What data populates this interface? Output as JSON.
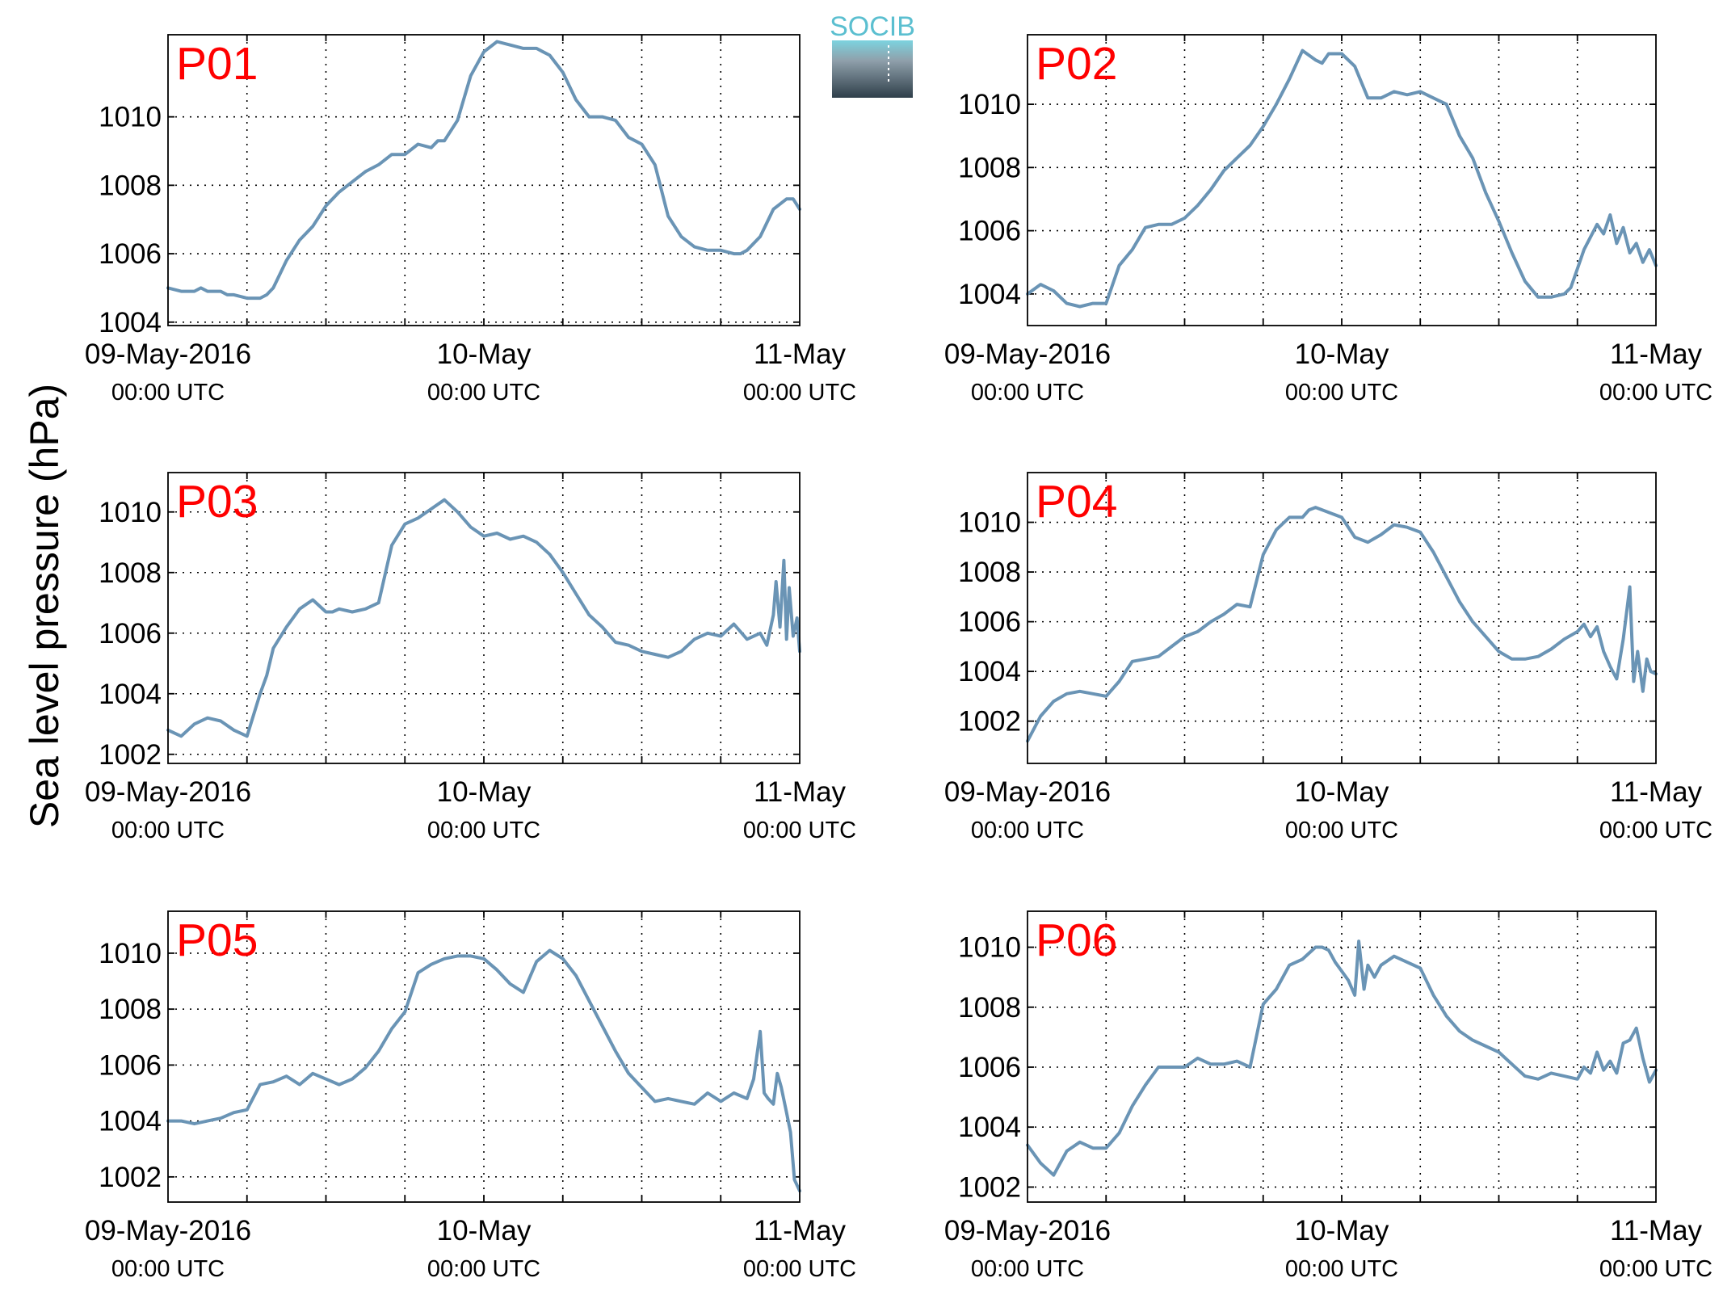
{
  "logo": {
    "text": "SOCIB"
  },
  "ylabel": "Sea level pressure (hPa)",
  "colors": {
    "series": "#6a94b5",
    "panel_label": "#ff0000"
  },
  "x_ticks": [
    {
      "line1": "09-May-2016",
      "line2": "00:00 UTC"
    },
    {
      "line1": "10-May",
      "line2": "00:00 UTC"
    },
    {
      "line1": "11-May",
      "line2": "00:00 UTC"
    }
  ],
  "chart_data": [
    {
      "type": "line",
      "label": "P01",
      "xlim": [
        0,
        48
      ],
      "ylim": [
        1003.9,
        1012.4
      ],
      "yticks": [
        1004,
        1006,
        1008,
        1010
      ],
      "grid": true,
      "x": [
        0,
        1,
        2,
        2.5,
        3,
        4,
        4.5,
        5,
        6,
        7,
        7.5,
        8,
        9,
        10,
        11,
        11.5,
        12,
        13,
        14,
        15,
        16,
        17,
        17.5,
        18,
        19,
        20,
        20.5,
        21,
        22,
        23,
        24,
        25,
        26,
        27,
        28,
        28.5,
        29,
        30,
        31,
        32,
        33,
        34,
        35,
        35.5,
        36,
        37,
        38,
        39,
        40,
        41,
        42,
        43,
        43.5,
        44,
        45,
        45.5,
        46,
        47,
        47.5,
        48
      ],
      "y": [
        1005.0,
        1004.9,
        1004.9,
        1005.0,
        1004.9,
        1004.9,
        1004.8,
        1004.8,
        1004.7,
        1004.7,
        1004.8,
        1005.0,
        1005.8,
        1006.4,
        1006.8,
        1007.1,
        1007.4,
        1007.8,
        1008.1,
        1008.4,
        1008.6,
        1008.9,
        1008.9,
        1008.9,
        1009.2,
        1009.1,
        1009.3,
        1009.3,
        1009.9,
        1011.2,
        1011.9,
        1012.2,
        1012.1,
        1012.0,
        1012.0,
        1011.9,
        1011.8,
        1011.3,
        1010.5,
        1010.0,
        1010.0,
        1009.9,
        1009.4,
        1009.3,
        1009.2,
        1008.6,
        1007.1,
        1006.5,
        1006.2,
        1006.1,
        1006.1,
        1006.0,
        1006.0,
        1006.1,
        1006.5,
        1006.9,
        1007.3,
        1007.6,
        1007.6,
        1007.3
      ]
    },
    {
      "type": "line",
      "label": "P02",
      "xlim": [
        0,
        48
      ],
      "ylim": [
        1003.0,
        1012.2
      ],
      "yticks": [
        1004,
        1006,
        1008,
        1010
      ],
      "grid": true,
      "x": [
        0,
        1,
        2,
        3,
        4,
        5,
        6,
        7,
        8,
        9,
        10,
        11,
        12,
        13,
        14,
        15,
        16,
        17,
        18,
        19,
        20,
        21,
        22,
        22.5,
        23,
        24,
        25,
        26,
        27,
        28,
        29,
        30,
        31,
        32,
        33,
        34,
        35,
        36,
        37,
        38,
        39,
        40,
        41,
        41.5,
        42,
        42.5,
        43,
        43.5,
        44,
        44.5,
        45,
        45.5,
        46,
        46.5,
        47,
        47.5,
        48
      ],
      "y": [
        1004.0,
        1004.3,
        1004.1,
        1003.7,
        1003.6,
        1003.7,
        1003.7,
        1004.9,
        1005.4,
        1006.1,
        1006.2,
        1006.2,
        1006.4,
        1006.8,
        1007.3,
        1007.9,
        1008.3,
        1008.7,
        1009.3,
        1010.0,
        1010.8,
        1011.7,
        1011.4,
        1011.3,
        1011.6,
        1011.6,
        1011.2,
        1010.2,
        1010.2,
        1010.4,
        1010.3,
        1010.4,
        1010.2,
        1010.0,
        1009.0,
        1008.3,
        1007.2,
        1006.3,
        1005.3,
        1004.4,
        1003.9,
        1003.9,
        1004.0,
        1004.2,
        1004.8,
        1005.4,
        1005.8,
        1006.2,
        1005.9,
        1006.5,
        1005.6,
        1006.1,
        1005.3,
        1005.6,
        1005.0,
        1005.4,
        1004.9
      ]
    },
    {
      "type": "line",
      "label": "P03",
      "xlim": [
        0,
        48
      ],
      "ylim": [
        1001.7,
        1011.3
      ],
      "yticks": [
        1002,
        1004,
        1006,
        1008,
        1010
      ],
      "grid": true,
      "x": [
        0,
        1,
        2,
        3,
        4,
        5,
        6,
        7,
        7.5,
        8,
        9,
        10,
        11,
        12,
        12.5,
        13,
        14,
        15,
        16,
        17,
        18,
        19,
        20,
        21,
        22,
        23,
        24,
        25,
        26,
        27,
        28,
        29,
        30,
        31,
        32,
        33,
        34,
        35,
        36,
        37,
        38,
        39,
        40,
        41,
        42,
        43,
        44,
        45,
        45.5,
        46,
        46.2,
        46.5,
        46.8,
        47,
        47.2,
        47.5,
        47.8,
        48
      ],
      "y": [
        1002.8,
        1002.6,
        1003.0,
        1003.2,
        1003.1,
        1002.8,
        1002.6,
        1004.0,
        1004.6,
        1005.5,
        1006.2,
        1006.8,
        1007.1,
        1006.7,
        1006.7,
        1006.8,
        1006.7,
        1006.8,
        1007.0,
        1008.9,
        1009.6,
        1009.8,
        1010.1,
        1010.4,
        1010.0,
        1009.5,
        1009.2,
        1009.3,
        1009.1,
        1009.2,
        1009.0,
        1008.6,
        1008.0,
        1007.3,
        1006.6,
        1006.2,
        1005.7,
        1005.6,
        1005.4,
        1005.3,
        1005.2,
        1005.4,
        1005.8,
        1006.0,
        1005.9,
        1006.3,
        1005.8,
        1006.0,
        1005.6,
        1006.6,
        1007.7,
        1006.2,
        1008.4,
        1005.8,
        1007.5,
        1005.9,
        1006.5,
        1005.4
      ]
    },
    {
      "type": "line",
      "label": "P04",
      "xlim": [
        0,
        48
      ],
      "ylim": [
        1000.3,
        1012.0
      ],
      "yticks": [
        1002,
        1004,
        1006,
        1008,
        1010
      ],
      "grid": true,
      "x": [
        0,
        1,
        2,
        3,
        4,
        5,
        6,
        7,
        8,
        9,
        10,
        11,
        12,
        13,
        14,
        15,
        16,
        17,
        18,
        19,
        20,
        21,
        21.5,
        22,
        23,
        24,
        25,
        26,
        27,
        28,
        29,
        30,
        31,
        32,
        33,
        34,
        35,
        36,
        37,
        38,
        39,
        40,
        41,
        42,
        42.5,
        43,
        43.5,
        44,
        44.5,
        45,
        45.5,
        46,
        46.3,
        46.6,
        47,
        47.3,
        47.6,
        48
      ],
      "y": [
        1001.2,
        1002.2,
        1002.8,
        1003.1,
        1003.2,
        1003.1,
        1003.0,
        1003.6,
        1004.4,
        1004.5,
        1004.6,
        1005.0,
        1005.4,
        1005.6,
        1006.0,
        1006.3,
        1006.7,
        1006.6,
        1008.7,
        1009.7,
        1010.2,
        1010.2,
        1010.5,
        1010.6,
        1010.4,
        1010.2,
        1009.4,
        1009.2,
        1009.5,
        1009.9,
        1009.8,
        1009.6,
        1008.8,
        1007.8,
        1006.8,
        1006.0,
        1005.4,
        1004.8,
        1004.5,
        1004.5,
        1004.6,
        1004.9,
        1005.3,
        1005.6,
        1005.9,
        1005.4,
        1005.8,
        1004.8,
        1004.2,
        1003.7,
        1005.3,
        1007.4,
        1003.6,
        1004.8,
        1003.2,
        1004.5,
        1004.0,
        1003.9
      ]
    },
    {
      "type": "line",
      "label": "P05",
      "xlim": [
        0,
        48
      ],
      "ylim": [
        1001.1,
        1011.5
      ],
      "yticks": [
        1002,
        1004,
        1006,
        1008,
        1010
      ],
      "grid": true,
      "x": [
        0,
        1,
        2,
        3,
        4,
        5,
        6,
        7,
        8,
        9,
        10,
        11,
        12,
        13,
        14,
        15,
        16,
        17,
        18,
        19,
        20,
        21,
        22,
        23,
        24,
        25,
        26,
        27,
        28,
        29,
        30,
        31,
        32,
        33,
        34,
        35,
        36,
        37,
        38,
        39,
        40,
        41,
        42,
        43,
        44,
        44.5,
        45,
        45.3,
        45.6,
        46,
        46.3,
        46.6,
        47,
        47.3,
        47.6,
        48
      ],
      "y": [
        1004.0,
        1004.0,
        1003.9,
        1004.0,
        1004.1,
        1004.3,
        1004.4,
        1005.3,
        1005.4,
        1005.6,
        1005.3,
        1005.7,
        1005.5,
        1005.3,
        1005.5,
        1005.9,
        1006.5,
        1007.3,
        1007.9,
        1009.3,
        1009.6,
        1009.8,
        1009.9,
        1009.9,
        1009.8,
        1009.4,
        1008.9,
        1008.6,
        1009.7,
        1010.1,
        1009.8,
        1009.2,
        1008.3,
        1007.4,
        1006.5,
        1005.7,
        1005.2,
        1004.7,
        1004.8,
        1004.7,
        1004.6,
        1005.0,
        1004.7,
        1005.0,
        1004.8,
        1005.5,
        1007.2,
        1005.0,
        1004.8,
        1004.6,
        1005.7,
        1005.2,
        1004.3,
        1003.6,
        1001.9,
        1001.5
      ]
    },
    {
      "type": "line",
      "label": "P06",
      "xlim": [
        0,
        48
      ],
      "ylim": [
        1001.5,
        1011.2
      ],
      "yticks": [
        1002,
        1004,
        1006,
        1008,
        1010
      ],
      "grid": true,
      "x": [
        0,
        1,
        2,
        3,
        4,
        5,
        6,
        7,
        8,
        9,
        10,
        11,
        12,
        13,
        14,
        15,
        16,
        17,
        18,
        19,
        20,
        21,
        22,
        22.5,
        23,
        23.5,
        24,
        24.5,
        25,
        25.3,
        25.7,
        26,
        26.5,
        27,
        28,
        29,
        30,
        31,
        32,
        33,
        34,
        35,
        36,
        37,
        38,
        39,
        40,
        41,
        42,
        42.5,
        43,
        43.5,
        44,
        44.5,
        45,
        45.5,
        46,
        46.5,
        47,
        47.5,
        48
      ],
      "y": [
        1003.4,
        1002.8,
        1002.4,
        1003.2,
        1003.5,
        1003.3,
        1003.3,
        1003.8,
        1004.7,
        1005.4,
        1006.0,
        1006.0,
        1006.0,
        1006.3,
        1006.1,
        1006.1,
        1006.2,
        1006.0,
        1008.1,
        1008.6,
        1009.4,
        1009.6,
        1010.0,
        1010.0,
        1009.9,
        1009.5,
        1009.2,
        1008.9,
        1008.4,
        1010.2,
        1008.6,
        1009.4,
        1009.0,
        1009.4,
        1009.7,
        1009.5,
        1009.3,
        1008.4,
        1007.7,
        1007.2,
        1006.9,
        1006.7,
        1006.5,
        1006.1,
        1005.7,
        1005.6,
        1005.8,
        1005.7,
        1005.6,
        1006.0,
        1005.8,
        1006.5,
        1005.9,
        1006.2,
        1005.8,
        1006.8,
        1006.9,
        1007.3,
        1006.3,
        1005.5,
        1005.9
      ]
    }
  ]
}
